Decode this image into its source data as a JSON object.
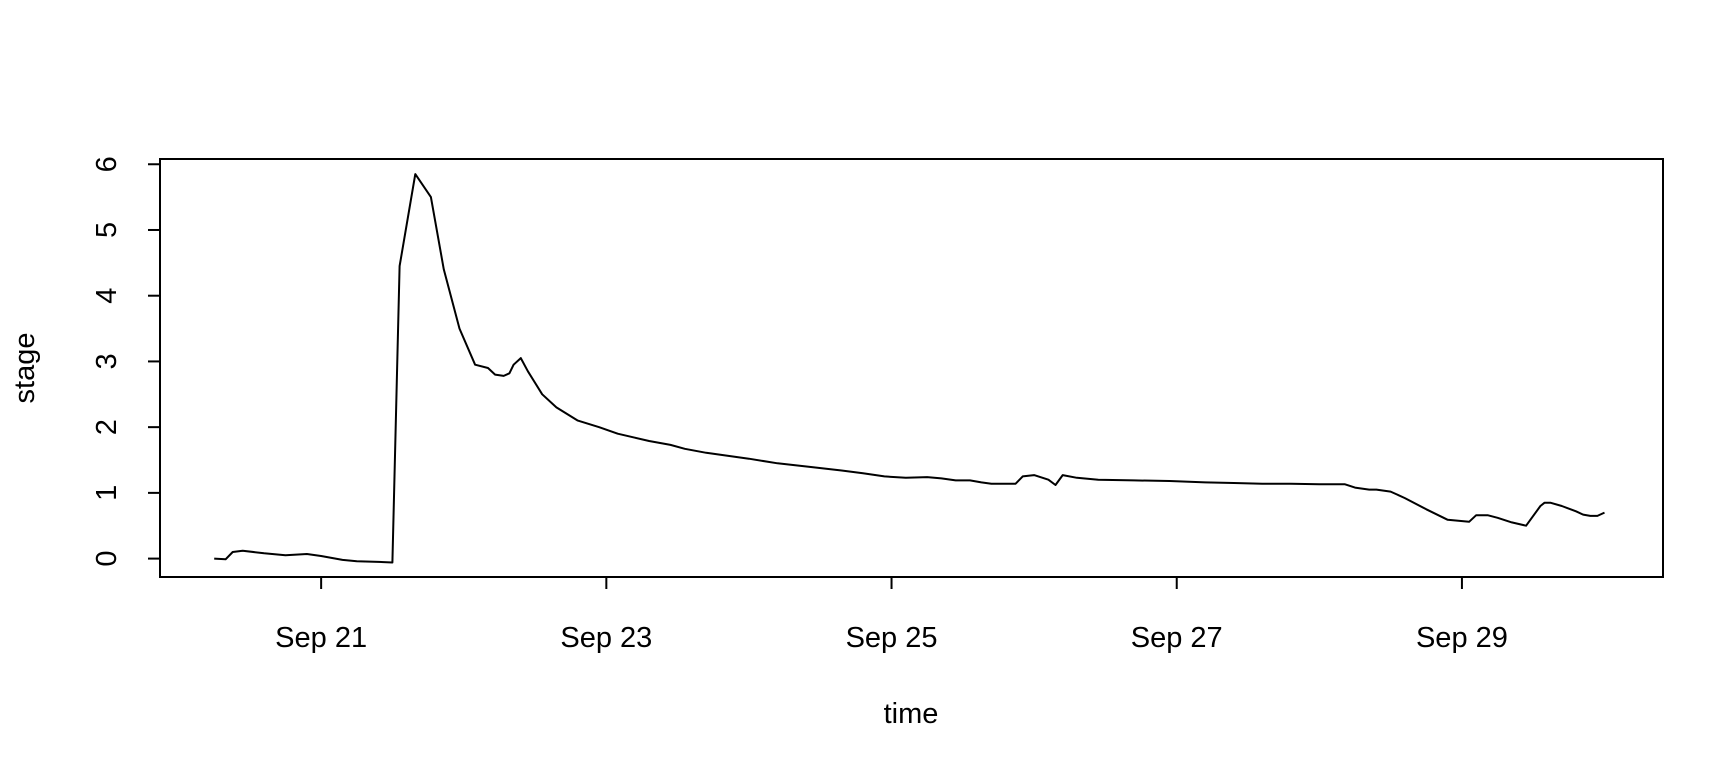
{
  "chart_data": {
    "type": "line",
    "title": "",
    "xlabel": "time",
    "ylabel": "stage",
    "x_ticks": [
      "Sep 21",
      "Sep 23",
      "Sep 25",
      "Sep 27",
      "Sep 29"
    ],
    "x_tick_values": [
      1.0,
      3.0,
      5.0,
      7.0,
      9.0
    ],
    "y_ticks": [
      "0",
      "1",
      "2",
      "3",
      "4",
      "5",
      "6"
    ],
    "y_tick_values": [
      0,
      1,
      2,
      3,
      4,
      5,
      6
    ],
    "xlim": [
      -0.13,
      10.41
    ],
    "ylim": [
      -0.28,
      6.08
    ],
    "grid": false,
    "series": [
      {
        "x": [
          0.25,
          0.33,
          0.38,
          0.45,
          0.6,
          0.75,
          0.9,
          1.0,
          1.15,
          1.25,
          1.4,
          1.5,
          1.55,
          1.66,
          1.77,
          1.86,
          1.97,
          2.08,
          2.17,
          2.22,
          2.28,
          2.32,
          2.35,
          2.4,
          2.45,
          2.55,
          2.65,
          2.8,
          2.95,
          3.08,
          3.2,
          3.3,
          3.45,
          3.55,
          3.7,
          4.0,
          4.2,
          4.45,
          4.65,
          4.8,
          4.95,
          5.1,
          5.25,
          5.35,
          5.45,
          5.55,
          5.63,
          5.7,
          5.8,
          5.87,
          5.92,
          6.0,
          6.1,
          6.15,
          6.2,
          6.3,
          6.45,
          6.7,
          6.95,
          7.2,
          7.4,
          7.6,
          7.8,
          8.0,
          8.18,
          8.25,
          8.35,
          8.4,
          8.5,
          8.6,
          8.75,
          8.9,
          9.05,
          9.1,
          9.18,
          9.25,
          9.35,
          9.45,
          9.55,
          9.58,
          9.62,
          9.7,
          9.8,
          9.85,
          9.9,
          9.95,
          10.0
        ],
        "values": [
          0.0,
          -0.01,
          0.1,
          0.12,
          0.08,
          0.05,
          0.07,
          0.04,
          -0.02,
          -0.04,
          -0.05,
          -0.06,
          4.45,
          5.85,
          5.5,
          4.4,
          3.5,
          2.95,
          2.9,
          2.8,
          2.78,
          2.82,
          2.95,
          3.05,
          2.85,
          2.5,
          2.3,
          2.1,
          2.0,
          1.9,
          1.84,
          1.79,
          1.73,
          1.67,
          1.61,
          1.52,
          1.45,
          1.39,
          1.34,
          1.3,
          1.25,
          1.23,
          1.24,
          1.22,
          1.19,
          1.19,
          1.16,
          1.14,
          1.14,
          1.14,
          1.25,
          1.27,
          1.2,
          1.12,
          1.27,
          1.23,
          1.2,
          1.19,
          1.18,
          1.16,
          1.15,
          1.14,
          1.14,
          1.13,
          1.13,
          1.08,
          1.05,
          1.05,
          1.02,
          0.92,
          0.75,
          0.59,
          0.56,
          0.66,
          0.66,
          0.62,
          0.55,
          0.5,
          0.8,
          0.85,
          0.85,
          0.8,
          0.72,
          0.67,
          0.65,
          0.65,
          0.7
        ]
      }
    ]
  }
}
